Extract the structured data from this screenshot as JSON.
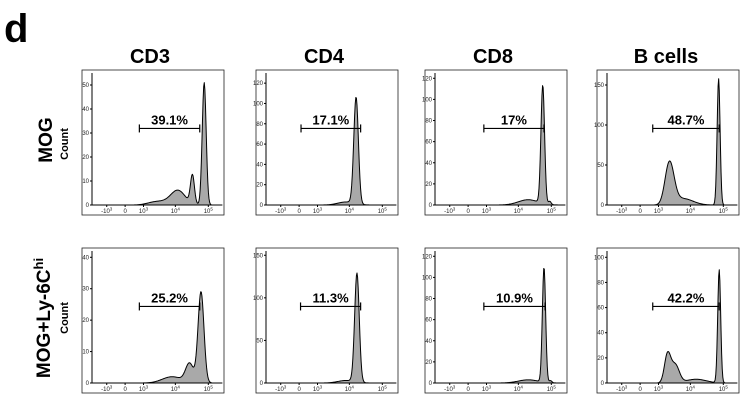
{
  "figure": {
    "panel_letter": "d",
    "columns": [
      "CD3",
      "CD4",
      "CD8",
      "B cells"
    ],
    "rows": [
      {
        "title": "MOG",
        "superscript": "",
        "count_label": "Count"
      },
      {
        "title": "MOG+Ly-6C",
        "superscript": "hi",
        "count_label": "Count"
      }
    ]
  },
  "chart_data": [
    {
      "type": "area",
      "title": "CD3",
      "row": "MOG",
      "ylabel": "Count",
      "ylim": [
        0,
        55
      ],
      "yticks": [
        0,
        10,
        20,
        30,
        40,
        50
      ],
      "xticks": [
        "-10^3",
        "0",
        "10^3",
        "10^4",
        "10^5"
      ],
      "gate": {
        "label": "39.1%",
        "from": 700,
        "to": 55000
      },
      "peaks": [
        {
          "x": 75000,
          "count": 51,
          "width": 0.06
        },
        {
          "x": 33000,
          "count": 12,
          "width": 0.06
        },
        {
          "x": 12000,
          "count": 6,
          "width": 0.22
        },
        {
          "x": 3000,
          "count": 1.5,
          "width": 0.3
        }
      ]
    },
    {
      "type": "area",
      "title": "CD4",
      "row": "MOG",
      "ylabel": "Count",
      "ylim": [
        0,
        130
      ],
      "yticks": [
        0,
        20,
        40,
        60,
        80,
        100,
        120
      ],
      "xticks": [
        "-10^3",
        "0",
        "10^3",
        "10^4",
        "10^5"
      ],
      "gate": {
        "label": "17.1%",
        "from": 80,
        "to": 22000
      },
      "peaks": [
        {
          "x": 16000,
          "count": 105,
          "width": 0.07
        },
        {
          "x": 8000,
          "count": 3,
          "width": 0.25
        }
      ]
    },
    {
      "type": "area",
      "title": "CD8",
      "row": "MOG",
      "ylabel": "Count",
      "ylim": [
        0,
        125
      ],
      "yticks": [
        0,
        20,
        40,
        60,
        80,
        100,
        120
      ],
      "xticks": [
        "-10^3",
        "0",
        "10^3",
        "10^4",
        "10^5"
      ],
      "gate": {
        "label": "17%",
        "from": 800,
        "to": 60000
      },
      "peaks": [
        {
          "x": 55000,
          "count": 112,
          "width": 0.055
        },
        {
          "x": 20000,
          "count": 5,
          "width": 0.3
        },
        {
          "x": 90000,
          "count": 3,
          "width": 0.04
        }
      ]
    },
    {
      "type": "area",
      "title": "B cells",
      "row": "MOG",
      "ylabel": "Count",
      "ylim": [
        0,
        165
      ],
      "yticks": [
        0,
        50,
        100,
        150
      ],
      "xticks": [
        "-10^3",
        "0",
        "10^3",
        "10^4",
        "10^5"
      ],
      "gate": {
        "label": "48.7%",
        "from": 600,
        "to": 75000
      },
      "peaks": [
        {
          "x": 72000,
          "count": 158,
          "width": 0.045
        },
        {
          "x": 2300,
          "count": 52,
          "width": 0.14
        },
        {
          "x": 6000,
          "count": 8,
          "width": 0.3
        }
      ]
    },
    {
      "type": "area",
      "title": "CD3",
      "row": "MOG+Ly-6C hi",
      "ylabel": "Count",
      "ylim": [
        0,
        42
      ],
      "yticks": [
        0,
        10,
        20,
        30,
        40
      ],
      "xticks": [
        "-10^3",
        "0",
        "10^3",
        "10^4",
        "10^5"
      ],
      "gate": {
        "label": "25.2%",
        "from": 700,
        "to": 55000
      },
      "peaks": [
        {
          "x": 60000,
          "count": 29,
          "width": 0.09
        },
        {
          "x": 27000,
          "count": 6,
          "width": 0.12
        },
        {
          "x": 8000,
          "count": 2,
          "width": 0.3
        }
      ]
    },
    {
      "type": "area",
      "title": "CD4",
      "row": "MOG+Ly-6C hi",
      "ylabel": "Count",
      "ylim": [
        0,
        155
      ],
      "yticks": [
        0,
        50,
        100,
        150
      ],
      "xticks": [
        "-10^3",
        "0",
        "10^3",
        "10^4",
        "10^5"
      ],
      "gate": {
        "label": "11.3%",
        "from": 60,
        "to": 22000
      },
      "peaks": [
        {
          "x": 17000,
          "count": 128,
          "width": 0.07
        },
        {
          "x": 8000,
          "count": 3,
          "width": 0.25
        }
      ]
    },
    {
      "type": "area",
      "title": "CD8",
      "row": "MOG+Ly-6C hi",
      "ylabel": "Count",
      "ylim": [
        0,
        125
      ],
      "yticks": [
        0,
        20,
        40,
        60,
        80,
        100,
        120
      ],
      "xticks": [
        "-10^3",
        "0",
        "10^3",
        "10^4",
        "10^5"
      ],
      "gate": {
        "label": "10.9%",
        "from": 800,
        "to": 65000
      },
      "peaks": [
        {
          "x": 60000,
          "count": 109,
          "width": 0.05
        },
        {
          "x": 20000,
          "count": 3,
          "width": 0.3
        },
        {
          "x": 95000,
          "count": 2,
          "width": 0.04
        }
      ]
    },
    {
      "type": "area",
      "title": "B cells",
      "row": "MOG+Ly-6C hi",
      "ylabel": "Count",
      "ylim": [
        0,
        105
      ],
      "yticks": [
        0,
        20,
        40,
        60,
        80,
        100
      ],
      "xticks": [
        "-10^3",
        "0",
        "10^3",
        "10^4",
        "10^5"
      ],
      "gate": {
        "label": "42.2%",
        "from": 600,
        "to": 75000
      },
      "peaks": [
        {
          "x": 75000,
          "count": 90,
          "width": 0.045
        },
        {
          "x": 2000,
          "count": 23,
          "width": 0.1
        },
        {
          "x": 3500,
          "count": 14,
          "width": 0.12
        },
        {
          "x": 15000,
          "count": 3,
          "width": 0.3
        }
      ]
    }
  ]
}
